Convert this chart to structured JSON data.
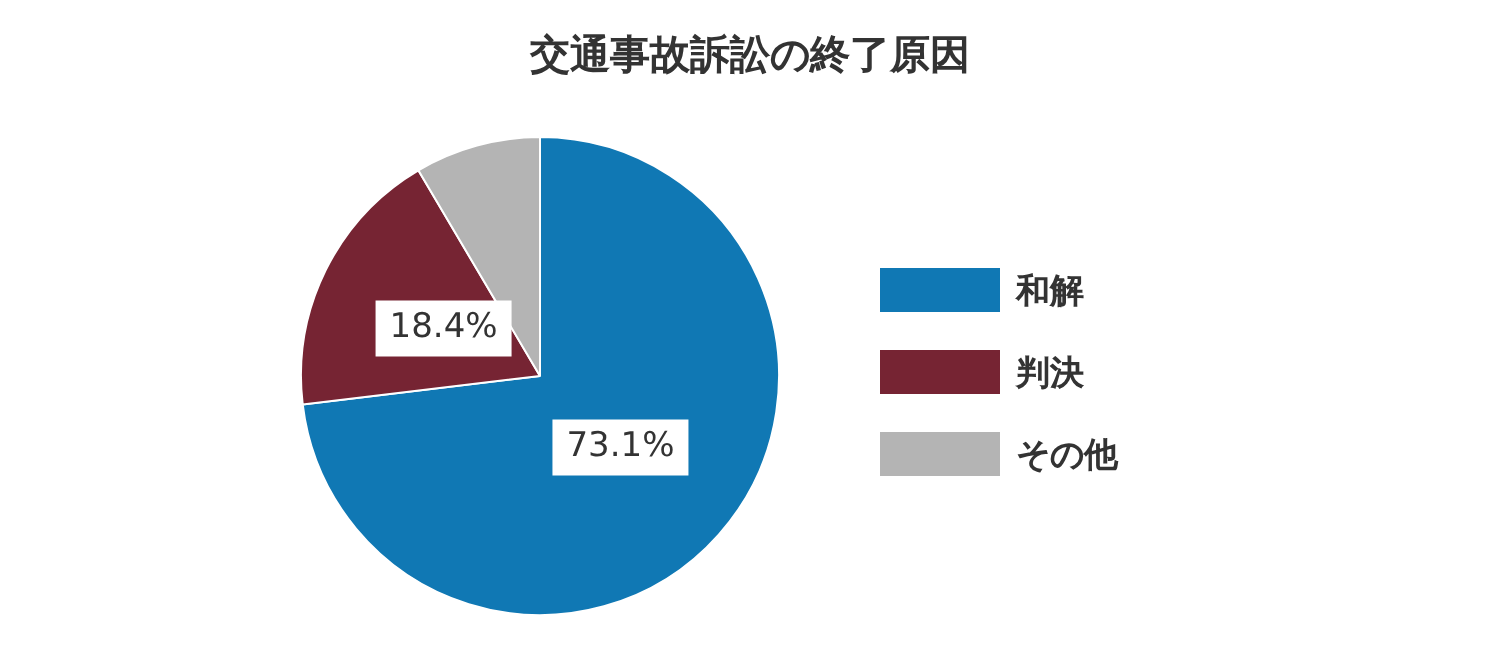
{
  "chart_data": {
    "type": "pie",
    "title": "交通事故訴訟の終了原因",
    "categories": [
      "和解",
      "判決",
      "その他"
    ],
    "values": [
      73.1,
      18.4,
      8.5
    ],
    "value_labels": [
      "73.1%",
      "18.4%",
      null
    ],
    "colors": [
      "#1078b4",
      "#762433",
      "#b4b4b4"
    ],
    "legend": "right"
  }
}
